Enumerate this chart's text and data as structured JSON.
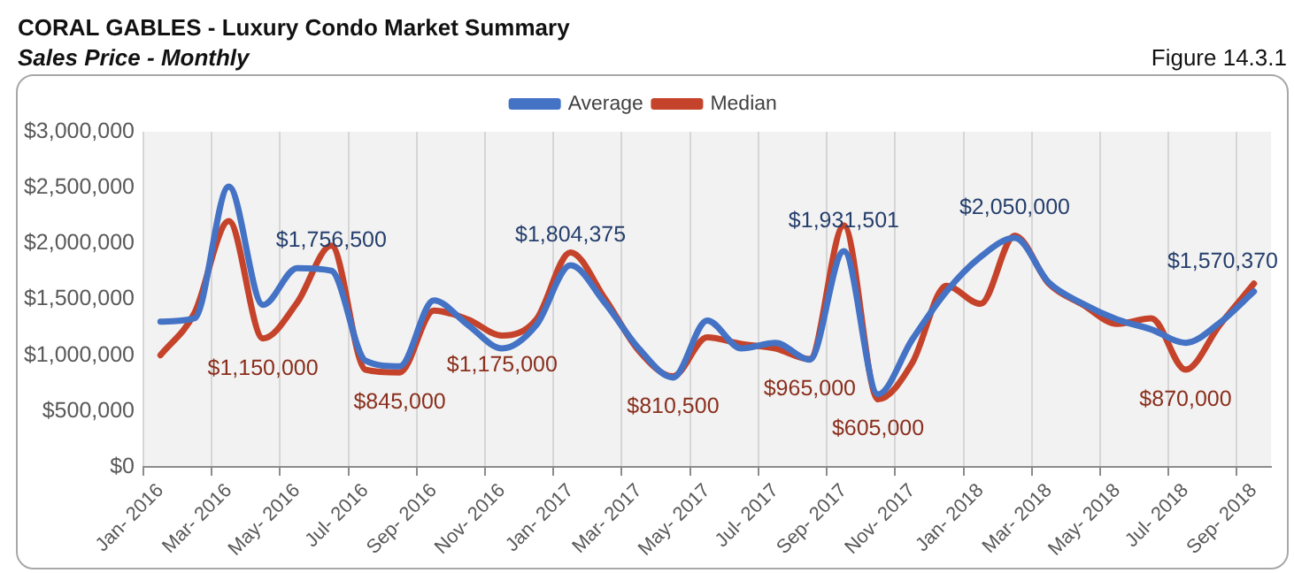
{
  "chart_data": {
    "type": "line",
    "title": "CORAL GABLES - Luxury Condo Market Summary",
    "subtitle": "Sales Price - Monthly",
    "annotations": [
      "Figure 14.3.1"
    ],
    "categories": [
      "Jan- 2016",
      null,
      "Mar- 2016",
      null,
      "May- 2016",
      null,
      "Jul- 2016",
      null,
      "Sep- 2016",
      null,
      "Nov- 2016",
      null,
      "Jan- 2017",
      null,
      "Mar- 2017",
      null,
      "May- 2017",
      null,
      "Jul- 2017",
      null,
      "Sep- 2017",
      null,
      "Nov- 2017",
      null,
      "Jan- 2018",
      null,
      "Mar- 2018",
      null,
      "May- 2018",
      null,
      "Jul- 2018",
      null,
      "Sep- 2018"
    ],
    "series": [
      {
        "name": "Average",
        "color": "#4472c4",
        "values": [
          1300000,
          1330000,
          2510000,
          1450000,
          1780000,
          1756500,
          950000,
          900000,
          1490000,
          1270000,
          1060000,
          1270000,
          1804375,
          1470000,
          1060000,
          800000,
          1310000,
          1060000,
          1110000,
          960000,
          1931501,
          650000,
          1140000,
          1570000,
          1880000,
          2050000,
          1650000,
          1460000,
          1320000,
          1230000,
          1110000,
          1290000,
          1570370
        ],
        "value_labels": [
          null,
          null,
          null,
          null,
          null,
          "$1,756,500",
          null,
          null,
          null,
          null,
          null,
          null,
          "$1,804,375",
          null,
          null,
          null,
          null,
          null,
          null,
          null,
          "$1,931,501",
          null,
          null,
          null,
          null,
          "$2,050,000",
          null,
          null,
          null,
          null,
          null,
          null,
          "$1,570,370"
        ]
      },
      {
        "name": "Median",
        "color": "#c5432a",
        "values": [
          1000000,
          1380000,
          2200000,
          1150000,
          1470000,
          1980000,
          870000,
          845000,
          1400000,
          1320000,
          1175000,
          1320000,
          1920000,
          1510000,
          1040000,
          810500,
          1160000,
          1100000,
          1060000,
          965000,
          2160000,
          605000,
          930000,
          1620000,
          1460000,
          2070000,
          1640000,
          1450000,
          1280000,
          1330000,
          870000,
          1270000,
          1640000
        ],
        "value_labels": [
          null,
          null,
          null,
          "$1,150,000",
          null,
          null,
          null,
          "$845,000",
          null,
          null,
          "$1,175,000",
          null,
          null,
          null,
          null,
          "$810,500",
          null,
          null,
          null,
          "$965,000",
          null,
          "$605,000",
          null,
          null,
          null,
          null,
          null,
          null,
          null,
          null,
          "$870,000",
          null,
          null
        ]
      }
    ],
    "ylim": [
      0,
      3000000
    ],
    "yticks": [
      {
        "value": 0,
        "label": "$0"
      },
      {
        "value": 500000,
        "label": "$500,000"
      },
      {
        "value": 1000000,
        "label": "$1,000,000"
      },
      {
        "value": 1500000,
        "label": "$1,500,000"
      },
      {
        "value": 2000000,
        "label": "$2,000,000"
      },
      {
        "value": 2500000,
        "label": "$2,500,000"
      },
      {
        "value": 3000000,
        "label": "$3,000,000"
      }
    ],
    "grid": "x",
    "legend": "top",
    "marker": "none",
    "line_style": "solid"
  }
}
